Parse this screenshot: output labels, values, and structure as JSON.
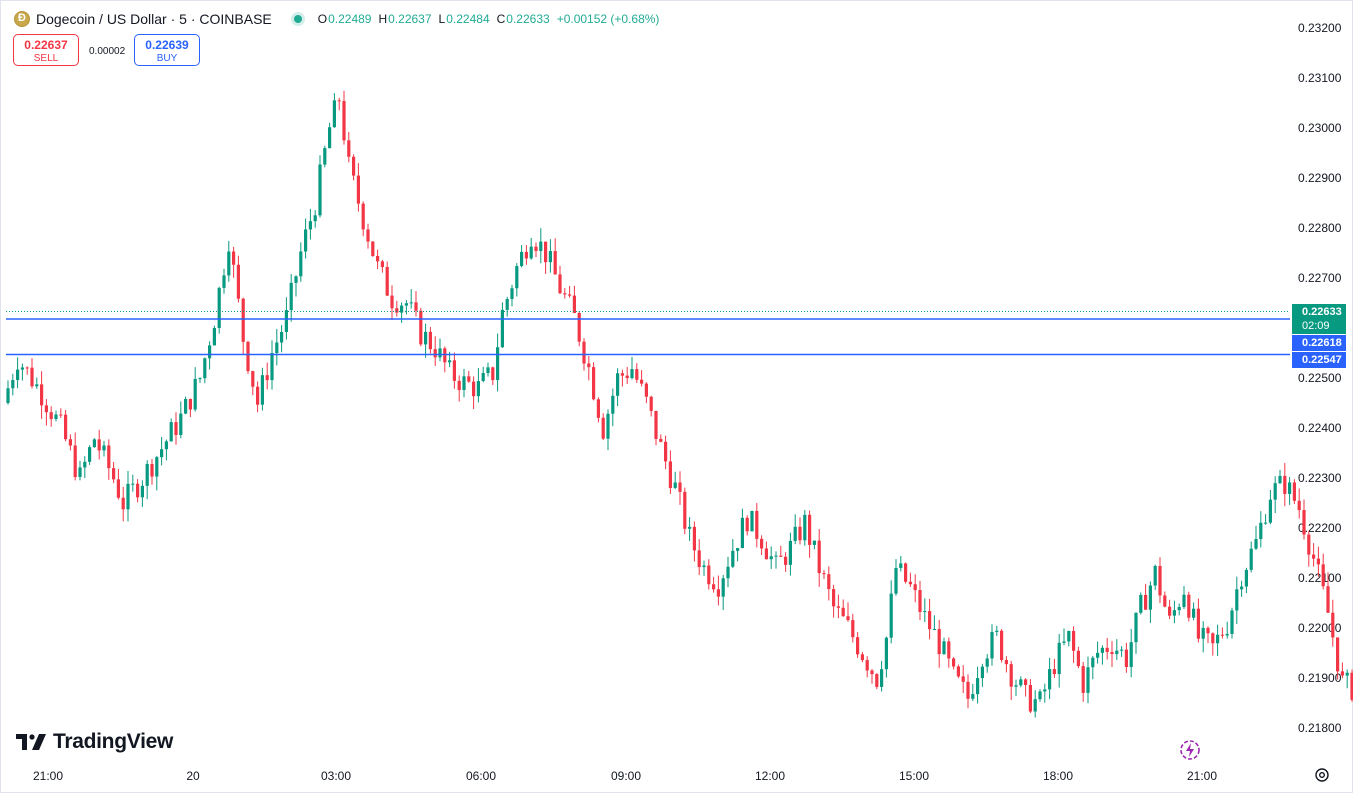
{
  "header": {
    "title": "Dogecoin / US Dollar · 5 · COINBASE",
    "icon": "dogecoin-icon",
    "ohlc": {
      "o_label": "O",
      "o": "0.22489",
      "h_label": "H",
      "h": "0.22637",
      "l_label": "L",
      "l": "0.22484",
      "c_label": "C",
      "c": "0.22633",
      "change": "+0.00152 (+0.68%)"
    }
  },
  "trade": {
    "sell_price": "0.22637",
    "sell_label": "SELL",
    "spread": "0.00002",
    "buy_price": "0.22639",
    "buy_label": "BUY"
  },
  "badges": {
    "current_price": "0.22633",
    "countdown": "02:09",
    "line_a": "0.22618",
    "line_b": "0.22547"
  },
  "logo": {
    "text": "TradingView"
  },
  "colors": {
    "up": "#089981",
    "down": "#f23645",
    "line": "#2962ff",
    "text": "#131722"
  },
  "chart_data": {
    "type": "candlestick",
    "interval": "5",
    "ylim": [
      0.2175,
      0.2325
    ],
    "y_ticks": [
      "0.23200",
      "0.23100",
      "0.23000",
      "0.22900",
      "0.22800",
      "0.22700",
      "0.22600",
      "0.22500",
      "0.22400",
      "0.22300",
      "0.22200",
      "0.22100",
      "0.22000",
      "0.21900",
      "0.21800"
    ],
    "x_ticks": [
      "21:00",
      "20",
      "03:00",
      "06:00",
      "09:00",
      "12:00",
      "15:00",
      "18:00",
      "21:00"
    ],
    "horizontal_lines": [
      0.22618,
      0.22547
    ],
    "current_price": 0.22633,
    "path": [
      [
        0,
        0.2245
      ],
      [
        3,
        0.2254
      ],
      [
        8,
        0.2247
      ],
      [
        12,
        0.224
      ],
      [
        16,
        0.223
      ],
      [
        19,
        0.2238
      ],
      [
        23,
        0.223
      ],
      [
        25,
        0.2225
      ],
      [
        29,
        0.223
      ],
      [
        33,
        0.2236
      ],
      [
        37,
        0.2242
      ],
      [
        41,
        0.225
      ],
      [
        44,
        0.2262
      ],
      [
        47,
        0.2278
      ],
      [
        50,
        0.2258
      ],
      [
        53,
        0.2245
      ],
      [
        56,
        0.2255
      ],
      [
        59,
        0.2262
      ],
      [
        62,
        0.2275
      ],
      [
        65,
        0.2285
      ],
      [
        68,
        0.23
      ],
      [
        70,
        0.2306
      ],
      [
        72,
        0.2292
      ],
      [
        75,
        0.2282
      ],
      [
        78,
        0.2272
      ],
      [
        81,
        0.2266
      ],
      [
        84,
        0.2265
      ],
      [
        87,
        0.2259
      ],
      [
        90,
        0.2256
      ],
      [
        93,
        0.2251
      ],
      [
        96,
        0.2249
      ],
      [
        99,
        0.2248
      ],
      [
        102,
        0.2251
      ],
      [
        104,
        0.2263
      ],
      [
        107,
        0.2272
      ],
      [
        110,
        0.2279
      ],
      [
        113,
        0.2275
      ],
      [
        116,
        0.2268
      ],
      [
        119,
        0.2262
      ],
      [
        122,
        0.2252
      ],
      [
        125,
        0.224
      ],
      [
        128,
        0.225
      ],
      [
        131,
        0.2252
      ],
      [
        134,
        0.2245
      ],
      [
        137,
        0.2236
      ],
      [
        140,
        0.2228
      ],
      [
        143,
        0.2218
      ],
      [
        146,
        0.2212
      ],
      [
        149,
        0.2209
      ],
      [
        152,
        0.2216
      ],
      [
        155,
        0.2222
      ],
      [
        158,
        0.2218
      ],
      [
        161,
        0.2212
      ],
      [
        164,
        0.2216
      ],
      [
        167,
        0.2221
      ],
      [
        170,
        0.2212
      ],
      [
        173,
        0.2204
      ],
      [
        176,
        0.22
      ],
      [
        179,
        0.2195
      ],
      [
        182,
        0.219
      ],
      [
        184,
        0.2198
      ],
      [
        186,
        0.2212
      ],
      [
        189,
        0.2208
      ],
      [
        192,
        0.2202
      ],
      [
        195,
        0.2197
      ],
      [
        198,
        0.219
      ],
      [
        201,
        0.2186
      ],
      [
        204,
        0.2195
      ],
      [
        207,
        0.2198
      ],
      [
        210,
        0.2191
      ],
      [
        213,
        0.2186
      ],
      [
        216,
        0.2185
      ],
      [
        219,
        0.2193
      ],
      [
        222,
        0.2198
      ],
      [
        225,
        0.2189
      ],
      [
        228,
        0.2195
      ],
      [
        231,
        0.2197
      ],
      [
        234,
        0.2194
      ],
      [
        237,
        0.2204
      ],
      [
        240,
        0.2211
      ],
      [
        243,
        0.2201
      ],
      [
        246,
        0.2208
      ],
      [
        249,
        0.2198
      ],
      [
        252,
        0.2196
      ],
      [
        255,
        0.2201
      ],
      [
        258,
        0.2211
      ],
      [
        261,
        0.2217
      ],
      [
        264,
        0.2227
      ],
      [
        267,
        0.2229
      ],
      [
        270,
        0.2224
      ],
      [
        273,
        0.2214
      ],
      [
        276,
        0.2203
      ],
      [
        279,
        0.2189
      ],
      [
        281,
        0.2188
      ],
      [
        283,
        0.22
      ],
      [
        286,
        0.222
      ],
      [
        289,
        0.2238
      ],
      [
        292,
        0.2242
      ],
      [
        295,
        0.2233
      ],
      [
        298,
        0.224
      ],
      [
        301,
        0.2248
      ],
      [
        303,
        0.2246
      ],
      [
        304,
        0.22633
      ]
    ],
    "candle_count": 305
  }
}
